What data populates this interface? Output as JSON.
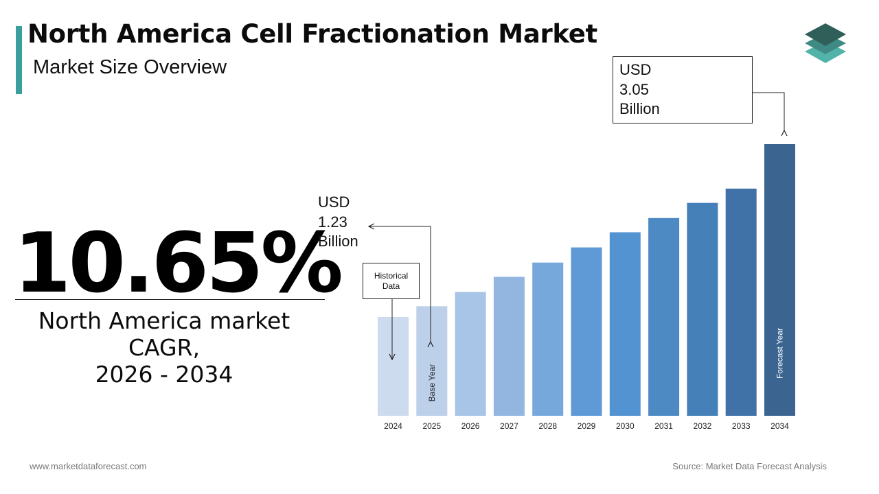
{
  "header": {
    "title": "North America Cell Fractionation Market",
    "subtitle": "Market Size Overview"
  },
  "cagr": {
    "value": "10.65%",
    "label": "North America market CAGR,\n2026 - 2034"
  },
  "annotations": {
    "start_value": "USD\n1.23\nBillion",
    "end_value": "USD\n3.05\nBillion",
    "historical": "Historical\nData",
    "base_year": "Base Year",
    "forecast_year": "Forecast Year"
  },
  "footer": {
    "website": "www.marketdataforecast.com",
    "source": "Source: Market Data Forecast Analysis"
  },
  "colors": {
    "accent": "#3a9e9c",
    "logo_top": "#2f5f58",
    "logo_mid": "#3f8a84",
    "logo_bottom": "#52b3a9"
  },
  "chart_data": {
    "type": "bar",
    "categories": [
      "2024",
      "2025",
      "2026",
      "2027",
      "2028",
      "2029",
      "2030",
      "2031",
      "2032",
      "2033",
      "2034"
    ],
    "values": [
      1.11,
      1.23,
      1.39,
      1.56,
      1.72,
      1.89,
      2.06,
      2.22,
      2.39,
      2.55,
      3.05
    ],
    "colors": [
      "#ccdbee",
      "#bcd0ea",
      "#a8c4e6",
      "#92b6e0",
      "#77a8dc",
      "#5f9ad6",
      "#5493d1",
      "#4d89c3",
      "#4680b8",
      "#4072a8",
      "#3b6590"
    ],
    "ylim": [
      0,
      3.05
    ],
    "grid": false,
    "legend": "none"
  }
}
